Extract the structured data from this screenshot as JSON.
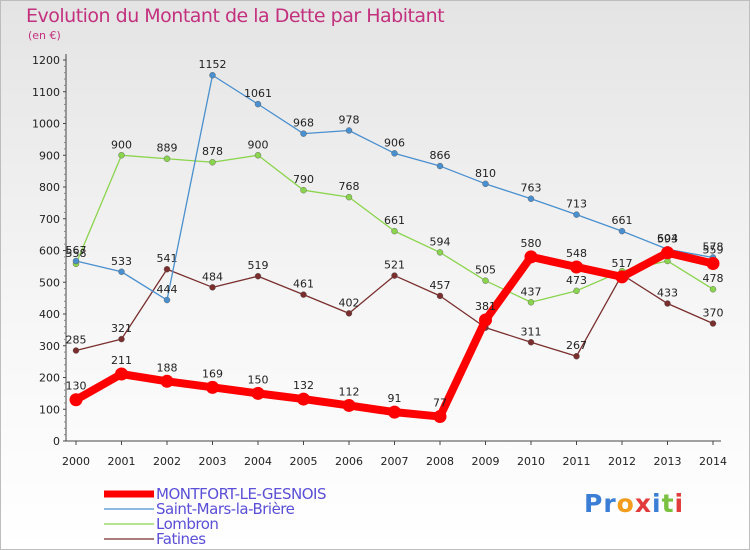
{
  "title": "Evolution du Montant de la Dette par Habitant",
  "unit": "(en €)",
  "logo": {
    "text": "Proxiti",
    "letter_colors": [
      "#3a7fd5",
      "#3a7fd5",
      "#f39b1a",
      "#e23b3b",
      "#3a7fd5",
      "#7cc242",
      "#e23b3b"
    ]
  },
  "chart_data": {
    "type": "line",
    "x": [
      "2000",
      "2001",
      "2002",
      "2003",
      "2004",
      "2005",
      "2006",
      "2007",
      "2008",
      "2009",
      "2010",
      "2011",
      "2012",
      "2013",
      "2014"
    ],
    "y_ticks": [
      0,
      100,
      200,
      300,
      400,
      500,
      600,
      700,
      800,
      900,
      1000,
      1100,
      1200
    ],
    "ylim": [
      0,
      1200
    ],
    "grid": false,
    "legend_position": "bottom-left",
    "series": [
      {
        "name": "Fatines",
        "color": "#7a2e2e",
        "values": [
          285,
          321,
          541,
          484,
          519,
          461,
          402,
          521,
          457,
          357,
          311,
          267,
          524,
          433,
          370
        ],
        "labels": [
          "285",
          "321",
          "541",
          "484",
          "519",
          "461",
          "402",
          "521",
          "457",
          "",
          "311",
          "267",
          "",
          "433",
          "370"
        ]
      },
      {
        "name": "Lombron",
        "color": "#8bd44d",
        "values": [
          558,
          900,
          889,
          878,
          900,
          790,
          768,
          661,
          594,
          505,
          437,
          473,
          535,
          567,
          478
        ],
        "labels": [
          "558",
          "900",
          "889",
          "878",
          "900",
          "790",
          "768",
          "661",
          "594",
          "505",
          "437",
          "473",
          "",
          "",
          "478"
        ]
      },
      {
        "name": "Saint-Mars-la-Brière",
        "color": "#4a8fce",
        "values": [
          567,
          533,
          444,
          1152,
          1061,
          968,
          978,
          906,
          866,
          810,
          763,
          713,
          661,
          604,
          578
        ],
        "labels": [
          "567",
          "533",
          "444",
          "1152",
          "1061",
          "968",
          "978",
          "906",
          "866",
          "810",
          "763",
          "713",
          "661",
          "604",
          "578"
        ]
      },
      {
        "name": "MONTFORT-LE-GESNOIS",
        "color": "#ff0000",
        "values": [
          130,
          211,
          188,
          169,
          150,
          132,
          112,
          91,
          77,
          381,
          580,
          548,
          517,
          593,
          559
        ],
        "labels": [
          "130",
          "211",
          "188",
          "169",
          "150",
          "132",
          "112",
          "91",
          "77",
          "381",
          "580",
          "548",
          "517",
          "593",
          "559"
        ]
      }
    ],
    "legend": [
      "MONTFORT-LE-GESNOIS",
      "Saint-Mars-la-Brière",
      "Lombron",
      "Fatines"
    ]
  }
}
